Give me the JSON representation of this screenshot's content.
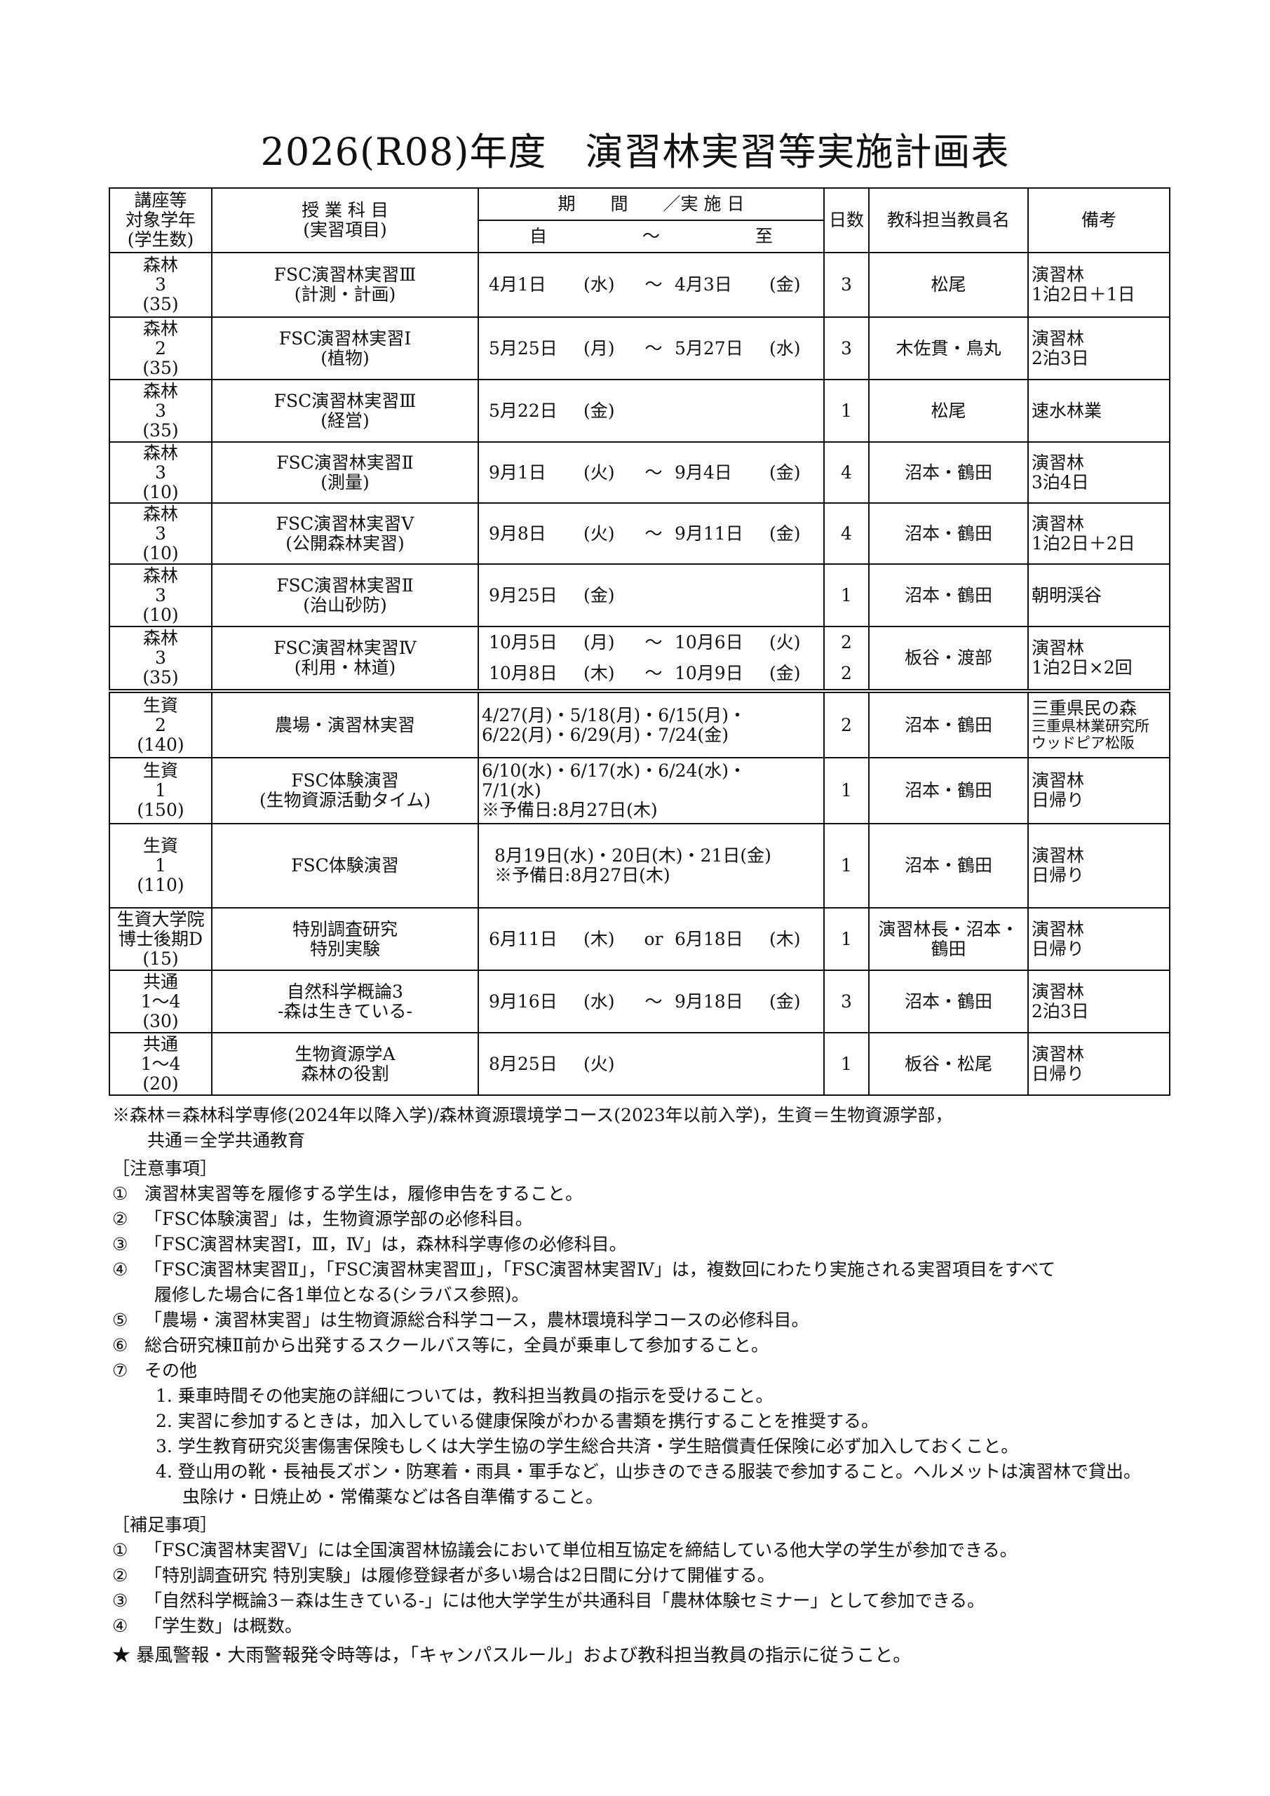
{
  "title": "2026(R08)年度　演習林実習等実施計画表",
  "header": {
    "grade": [
      "講座等",
      "対象学年",
      "(学生数)"
    ],
    "subject": [
      "授 業 科 目",
      "(実習項目)"
    ],
    "period": "期　　間　　／実 施 日",
    "from": "自",
    "tilde": "～",
    "to": "至",
    "days": "日数",
    "teacher": "教科担当教員名",
    "remarks": "備考"
  },
  "rows": [
    {
      "grade": [
        "森林",
        "3",
        "(35)"
      ],
      "subject": [
        "FSC演習林実習Ⅲ",
        "(計測・計画)"
      ],
      "dates": [
        {
          "from": "4月1日",
          "fd": "(水)",
          "sep": "～",
          "to": "4月3日",
          "td": "(金)"
        }
      ],
      "days": [
        "3"
      ],
      "teacher": [
        "松尾"
      ],
      "remarks": [
        "演習林",
        "1泊2日＋1日"
      ]
    },
    {
      "grade": [
        "森林",
        "2",
        "(35)"
      ],
      "subject": [
        "FSC演習林実習Ⅰ",
        "(植物)"
      ],
      "dates": [
        {
          "from": "5月25日",
          "fd": "(月)",
          "sep": "～",
          "to": "5月27日",
          "td": "(水)"
        }
      ],
      "days": [
        "3"
      ],
      "teacher": [
        "木佐貫・鳥丸"
      ],
      "remarks": [
        "演習林",
        "2泊3日"
      ]
    },
    {
      "grade": [
        "森林",
        "3",
        "(35)"
      ],
      "subject": [
        "FSC演習林実習Ⅲ",
        "(経営)"
      ],
      "dates": [
        {
          "from": "5月22日",
          "fd": "(金)"
        }
      ],
      "days": [
        "1"
      ],
      "teacher": [
        "松尾"
      ],
      "remarks": [
        "速水林業"
      ]
    },
    {
      "grade": [
        "森林",
        "3",
        "(10)"
      ],
      "subject": [
        "FSC演習林実習Ⅱ",
        "(測量)"
      ],
      "dates": [
        {
          "from": "9月1日",
          "fd": "(火)",
          "sep": "～",
          "to": "9月4日",
          "td": "(金)"
        }
      ],
      "days": [
        "4"
      ],
      "teacher": [
        "沼本・鶴田"
      ],
      "remarks": [
        "演習林",
        "3泊4日"
      ]
    },
    {
      "grade": [
        "森林",
        "3",
        "(10)"
      ],
      "subject": [
        "FSC演習林実習Ⅴ",
        "(公開森林実習)"
      ],
      "dates": [
        {
          "from": "9月8日",
          "fd": "(火)",
          "sep": "～",
          "to": "9月11日",
          "td": "(金)"
        }
      ],
      "days": [
        "4"
      ],
      "teacher": [
        "沼本・鶴田"
      ],
      "remarks": [
        "演習林",
        "1泊2日＋2日"
      ]
    },
    {
      "grade": [
        "森林",
        "3",
        "(10)"
      ],
      "subject": [
        "FSC演習林実習Ⅱ",
        "(治山砂防)"
      ],
      "dates": [
        {
          "from": "9月25日",
          "fd": "(金)"
        }
      ],
      "days": [
        "1"
      ],
      "teacher": [
        "沼本・鶴田"
      ],
      "remarks": [
        "朝明渓谷"
      ]
    },
    {
      "grade": [
        "森林",
        "3",
        "(35)"
      ],
      "subject": [
        "FSC演習林実習Ⅳ",
        "(利用・林道)"
      ],
      "dates": [
        {
          "from": "10月5日",
          "fd": "(月)",
          "sep": "～",
          "to": "10月6日",
          "td": "(火)"
        },
        {
          "from": "10月8日",
          "fd": "(木)",
          "sep": "～",
          "to": "10月9日",
          "td": "(金)"
        }
      ],
      "days": [
        "2",
        "2"
      ],
      "teacher": [
        "板谷・渡部"
      ],
      "remarks": [
        "演習林",
        "1泊2日×2回"
      ]
    },
    {
      "sep": true,
      "grade": [
        "生資",
        "2",
        "(140)"
      ],
      "subject": [
        "農場・演習林実習"
      ],
      "text": [
        "4/27(月)・5/18(月)・6/15(月)・",
        "6/22(月)・6/29(月)・7/24(金)"
      ],
      "days": [
        "2"
      ],
      "teacher": [
        "沼本・鶴田"
      ],
      "remarks": [
        "三重県民の森",
        "三重県林業研究所",
        "ウッドピア松阪"
      ]
    },
    {
      "grade": [
        "生資",
        "1",
        "(150)"
      ],
      "subject": [
        "FSC体験演習",
        "(生物資源活動タイム)"
      ],
      "text": [
        "6/10(水)・6/17(水)・6/24(水)・",
        "7/1(水)",
        "※予備日:8月27日(木)"
      ],
      "days": [
        "1"
      ],
      "teacher": [
        "沼本・鶴田"
      ],
      "remarks": [
        "演習林",
        "日帰り"
      ]
    },
    {
      "grade": [
        "生資",
        "1",
        "(110)"
      ],
      "subject": [
        "FSC体験演習"
      ],
      "text": [
        "8月19日(水)・20日(木)・21日(金)",
        "※予備日:8月27日(木)"
      ],
      "days": [
        "1"
      ],
      "teacher": [
        "沼本・鶴田"
      ],
      "remarks": [
        "演習林",
        "日帰り"
      ]
    },
    {
      "grade": [
        "生資大学院",
        "博士後期D",
        "(15)"
      ],
      "subject": [
        "特別調査研究",
        "特別実験"
      ],
      "dates": [
        {
          "from": "6月11日",
          "fd": "(木)",
          "sep": "or",
          "to": "6月18日",
          "td": "(木)"
        }
      ],
      "days": [
        "1"
      ],
      "teacher": [
        "演習林長・沼本・",
        "鶴田"
      ],
      "remarks": [
        "演習林",
        "日帰り"
      ]
    },
    {
      "grade": [
        "共通",
        "1～4",
        "(30)"
      ],
      "subject": [
        "自然科学概論3",
        "-森は生きている-"
      ],
      "dates": [
        {
          "from": "9月16日",
          "fd": "(水)",
          "sep": "～",
          "to": "9月18日",
          "td": "(金)"
        }
      ],
      "days": [
        "3"
      ],
      "teacher": [
        "沼本・鶴田"
      ],
      "remarks": [
        "演習林",
        "2泊3日"
      ]
    },
    {
      "grade": [
        "共通",
        "1～4",
        "(20)"
      ],
      "subject": [
        "生物資源学A",
        "森林の役割"
      ],
      "dates": [
        {
          "from": "8月25日",
          "fd": "(火)"
        }
      ],
      "days": [
        "1"
      ],
      "teacher": [
        "板谷・松尾"
      ],
      "remarks": [
        "演習林",
        "日帰り"
      ]
    }
  ],
  "footnote": [
    "※森林＝森林科学専修(2024年以降入学)/森林資源環境学コース(2023年以前入学)，生資＝生物資源学部，",
    "共通＝全学共通教育"
  ],
  "cautions": {
    "heading": "［注意事項］",
    "items": [
      {
        "mark": "①",
        "lines": [
          "演習林実習等を履修する学生は，履修申告をすること。"
        ]
      },
      {
        "mark": "②",
        "lines": [
          "「FSC体験演習」は，生物資源学部の必修科目。"
        ]
      },
      {
        "mark": "③",
        "lines": [
          "「FSC演習林実習Ⅰ，Ⅲ，Ⅳ」は，森林科学専修の必修科目。"
        ]
      },
      {
        "mark": "④",
        "lines": [
          "「FSC演習林実習Ⅱ」，「FSC演習林実習Ⅲ」，「FSC演習林実習Ⅳ」は，複数回にわたり実施される実習項目をすべて",
          "履修した場合に各1単位となる(シラバス参照)。"
        ]
      },
      {
        "mark": "⑤",
        "lines": [
          "「農場・演習林実習」は生物資源総合科学コース，農林環境科学コースの必修科目。"
        ]
      },
      {
        "mark": "⑥",
        "lines": [
          "総合研究棟Ⅱ前から出発するスクールバス等に，全員が乗車して参加すること。"
        ]
      },
      {
        "mark": "⑦",
        "lines": [
          "その他"
        ]
      }
    ],
    "sub": [
      [
        "1. 乗車時間その他実施の詳細については，教科担当教員の指示を受けること。"
      ],
      [
        "2. 実習に参加するときは，加入している健康保険がわかる書類を携行することを推奨する。"
      ],
      [
        "3. 学生教育研究災害傷害保険もしくは大学生協の学生総合共済・学生賠償責任保険に必ず加入しておくこと。"
      ],
      [
        "4. 登山用の靴・長袖長ズボン・防寒着・雨具・軍手など，山歩きのできる服装で参加すること。ヘルメットは演習林で貸出。",
        "虫除け・日焼止め・常備薬などは各自準備すること。"
      ]
    ]
  },
  "supplement": {
    "heading": "［補足事項］",
    "items": [
      {
        "mark": "①",
        "lines": [
          "「FSC演習林実習Ⅴ」には全国演習林協議会において単位相互協定を締結している他大学の学生が参加できる。"
        ]
      },
      {
        "mark": "②",
        "lines": [
          "「特別調査研究 特別実験」は履修登録者が多い場合は2日間に分けて開催する。"
        ]
      },
      {
        "mark": "③",
        "lines": [
          "「自然科学概論3－森は生きている-」には他大学学生が共通科目「農林体験セミナー」として参加できる。"
        ]
      },
      {
        "mark": "④",
        "lines": [
          "「学生数」は概数。"
        ]
      }
    ]
  },
  "warning": {
    "icon": "star-icon",
    "text": "★ 暴風警報・大雨警報発令時等は，「キャンパスルール」および教科担当教員の指示に従うこと。"
  }
}
